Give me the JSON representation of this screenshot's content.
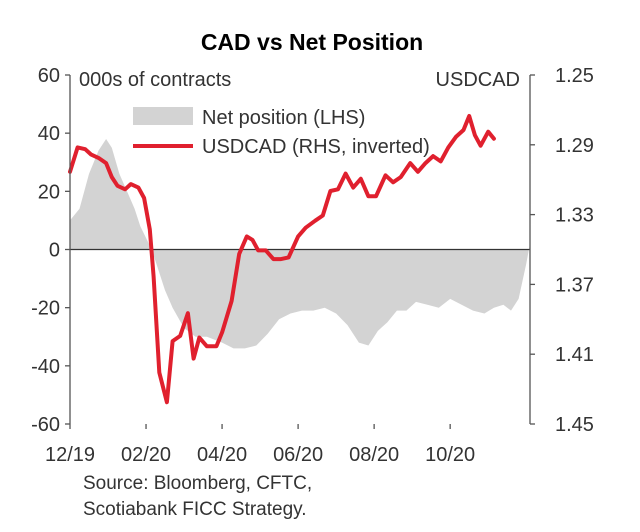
{
  "chart_data": {
    "type": "area",
    "title": "CAD vs Net Position",
    "left_axis": {
      "unit_label": "000s of contracts",
      "ylim": [
        -60,
        60
      ],
      "ticks": [
        60,
        40,
        20,
        0,
        -20,
        -40,
        -60
      ],
      "tick_labels": [
        "60",
        "40",
        "20",
        "0",
        "-20",
        "-40",
        "-60"
      ]
    },
    "right_axis": {
      "unit_label": "USDCAD",
      "ylim": [
        1.25,
        1.45
      ],
      "inverted": true,
      "ticks": [
        1.25,
        1.29,
        1.33,
        1.37,
        1.41,
        1.45
      ],
      "tick_labels": [
        "1.25",
        "1.29",
        "1.33",
        "1.37",
        "1.41",
        "1.45"
      ]
    },
    "x_axis": {
      "tick_labels": [
        "12/19",
        "02/20",
        "04/20",
        "06/20",
        "08/20",
        "10/20"
      ],
      "tick_positions": [
        0,
        2,
        4,
        6,
        8,
        10
      ]
    },
    "legend": {
      "placement": "top-left"
    },
    "series": [
      {
        "name": "Net position (LHS)",
        "axis": "left",
        "style": "area",
        "color": "#d3d3d3",
        "points": [
          [
            0.0,
            10
          ],
          [
            0.25,
            14
          ],
          [
            0.5,
            26
          ],
          [
            0.75,
            34
          ],
          [
            0.95,
            38
          ],
          [
            1.1,
            35
          ],
          [
            1.3,
            26
          ],
          [
            1.5,
            20
          ],
          [
            1.7,
            14
          ],
          [
            1.85,
            8
          ],
          [
            2.0,
            4
          ],
          [
            2.15,
            0
          ],
          [
            2.3,
            -6
          ],
          [
            2.5,
            -14
          ],
          [
            2.7,
            -20
          ],
          [
            3.0,
            -27
          ],
          [
            3.3,
            -30
          ],
          [
            3.6,
            -30
          ],
          [
            4.0,
            -32
          ],
          [
            4.3,
            -34
          ],
          [
            4.6,
            -34
          ],
          [
            4.9,
            -33
          ],
          [
            5.2,
            -29
          ],
          [
            5.5,
            -24
          ],
          [
            5.8,
            -22
          ],
          [
            6.1,
            -21
          ],
          [
            6.4,
            -21
          ],
          [
            6.7,
            -20
          ],
          [
            7.0,
            -22
          ],
          [
            7.3,
            -26
          ],
          [
            7.6,
            -32
          ],
          [
            7.85,
            -33
          ],
          [
            8.1,
            -28
          ],
          [
            8.35,
            -25
          ],
          [
            8.6,
            -21
          ],
          [
            8.85,
            -21
          ],
          [
            9.1,
            -18
          ],
          [
            9.4,
            -19
          ],
          [
            9.7,
            -20
          ],
          [
            10.0,
            -17
          ],
          [
            10.3,
            -19
          ],
          [
            10.6,
            -21
          ],
          [
            10.9,
            -22
          ],
          [
            11.15,
            -20
          ],
          [
            11.4,
            -19
          ],
          [
            11.6,
            -21
          ],
          [
            11.8,
            -17
          ],
          [
            12.0,
            -5
          ],
          [
            12.1,
            2
          ]
        ]
      },
      {
        "name": "USDCAD (RHS, inverted)",
        "axis": "right",
        "style": "line",
        "color": "#e0202e",
        "points": [
          [
            0.0,
            1.3055
          ],
          [
            0.2,
            1.2915
          ],
          [
            0.4,
            1.2925
          ],
          [
            0.55,
            1.2955
          ],
          [
            0.75,
            1.2975
          ],
          [
            0.95,
            1.3005
          ],
          [
            1.1,
            1.3085
          ],
          [
            1.25,
            1.3135
          ],
          [
            1.45,
            1.3155
          ],
          [
            1.6,
            1.3125
          ],
          [
            1.8,
            1.3145
          ],
          [
            1.95,
            1.3205
          ],
          [
            2.1,
            1.3385
          ],
          [
            2.2,
            1.3655
          ],
          [
            2.35,
            1.4205
          ],
          [
            2.55,
            1.4375
          ],
          [
            2.7,
            1.4025
          ],
          [
            2.9,
            1.3995
          ],
          [
            3.1,
            1.3865
          ],
          [
            3.25,
            1.4125
          ],
          [
            3.4,
            1.4005
          ],
          [
            3.6,
            1.4055
          ],
          [
            3.85,
            1.4055
          ],
          [
            4.0,
            1.3975
          ],
          [
            4.25,
            1.3795
          ],
          [
            4.45,
            1.3525
          ],
          [
            4.65,
            1.3425
          ],
          [
            4.8,
            1.3445
          ],
          [
            4.95,
            1.3505
          ],
          [
            5.15,
            1.3505
          ],
          [
            5.35,
            1.3555
          ],
          [
            5.55,
            1.3555
          ],
          [
            5.75,
            1.3545
          ],
          [
            6.0,
            1.3425
          ],
          [
            6.2,
            1.3375
          ],
          [
            6.45,
            1.3335
          ],
          [
            6.65,
            1.3305
          ],
          [
            6.85,
            1.3165
          ],
          [
            7.05,
            1.3155
          ],
          [
            7.25,
            1.3065
          ],
          [
            7.45,
            1.3145
          ],
          [
            7.65,
            1.3095
          ],
          [
            7.85,
            1.3195
          ],
          [
            8.05,
            1.3195
          ],
          [
            8.3,
            1.3075
          ],
          [
            8.5,
            1.3115
          ],
          [
            8.7,
            1.3085
          ],
          [
            8.95,
            1.3005
          ],
          [
            9.15,
            1.3055
          ],
          [
            9.35,
            1.3005
          ],
          [
            9.55,
            1.2965
          ],
          [
            9.75,
            1.2995
          ],
          [
            9.95,
            1.2915
          ],
          [
            10.15,
            1.2855
          ],
          [
            10.35,
            1.2815
          ],
          [
            10.5,
            1.2735
          ],
          [
            10.65,
            1.2845
          ],
          [
            10.8,
            1.2905
          ],
          [
            11.0,
            1.2825
          ],
          [
            11.15,
            1.2865
          ]
        ]
      }
    ],
    "source": [
      "Source: Bloomberg, CFTC,",
      "Scotiabank FICC  Strategy."
    ]
  }
}
